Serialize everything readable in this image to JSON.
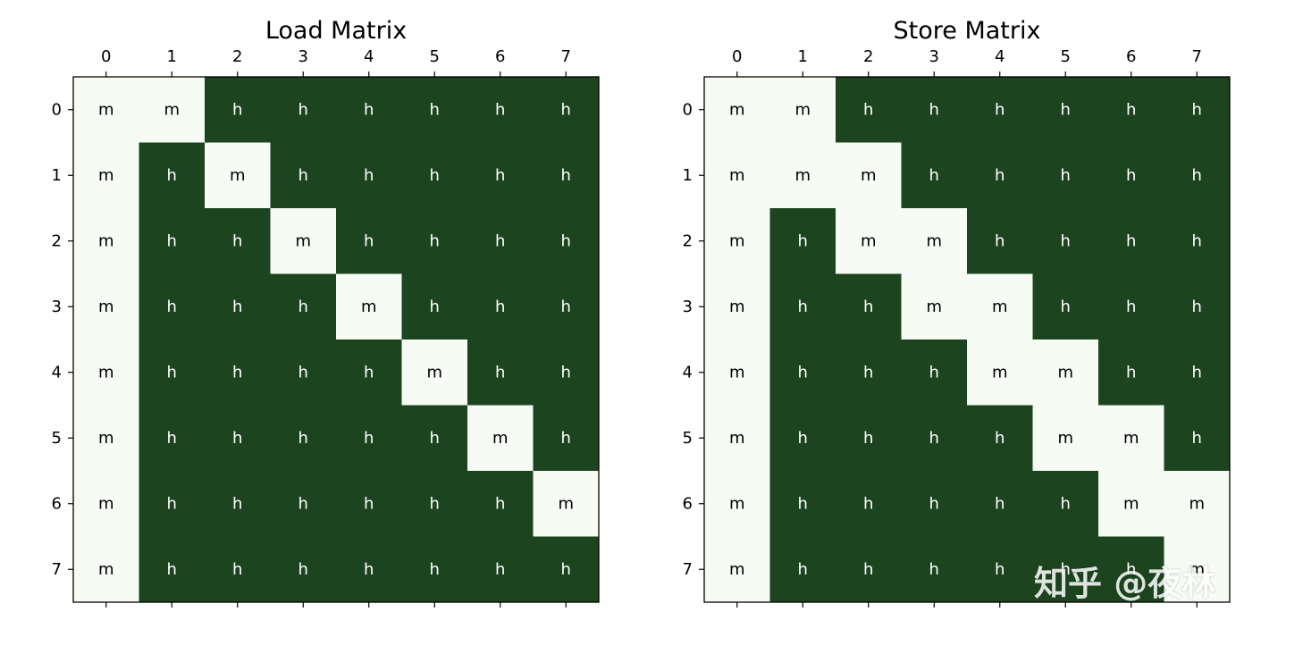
{
  "colors": {
    "h": "#1c441f",
    "m": "#f6fbf4",
    "text_on_h": "#ffffff",
    "text_on_m": "#000000"
  },
  "watermark": "知乎 @夜林",
  "chart_data": [
    {
      "type": "heatmap",
      "title": "Load Matrix",
      "x_ticks": [
        "0",
        "1",
        "2",
        "3",
        "4",
        "5",
        "6",
        "7"
      ],
      "y_ticks": [
        "0",
        "1",
        "2",
        "3",
        "4",
        "5",
        "6",
        "7"
      ],
      "values": [
        [
          "m",
          "m",
          "h",
          "h",
          "h",
          "h",
          "h",
          "h"
        ],
        [
          "m",
          "h",
          "m",
          "h",
          "h",
          "h",
          "h",
          "h"
        ],
        [
          "m",
          "h",
          "h",
          "m",
          "h",
          "h",
          "h",
          "h"
        ],
        [
          "m",
          "h",
          "h",
          "h",
          "m",
          "h",
          "h",
          "h"
        ],
        [
          "m",
          "h",
          "h",
          "h",
          "h",
          "m",
          "h",
          "h"
        ],
        [
          "m",
          "h",
          "h",
          "h",
          "h",
          "h",
          "m",
          "h"
        ],
        [
          "m",
          "h",
          "h",
          "h",
          "h",
          "h",
          "h",
          "m"
        ],
        [
          "m",
          "h",
          "h",
          "h",
          "h",
          "h",
          "h",
          "h"
        ]
      ]
    },
    {
      "type": "heatmap",
      "title": "Store Matrix",
      "x_ticks": [
        "0",
        "1",
        "2",
        "3",
        "4",
        "5",
        "6",
        "7"
      ],
      "y_ticks": [
        "0",
        "1",
        "2",
        "3",
        "4",
        "5",
        "6",
        "7"
      ],
      "values": [
        [
          "m",
          "m",
          "h",
          "h",
          "h",
          "h",
          "h",
          "h"
        ],
        [
          "m",
          "m",
          "m",
          "h",
          "h",
          "h",
          "h",
          "h"
        ],
        [
          "m",
          "h",
          "m",
          "m",
          "h",
          "h",
          "h",
          "h"
        ],
        [
          "m",
          "h",
          "h",
          "m",
          "m",
          "h",
          "h",
          "h"
        ],
        [
          "m",
          "h",
          "h",
          "h",
          "m",
          "m",
          "h",
          "h"
        ],
        [
          "m",
          "h",
          "h",
          "h",
          "h",
          "m",
          "m",
          "h"
        ],
        [
          "m",
          "h",
          "h",
          "h",
          "h",
          "h",
          "m",
          "m"
        ],
        [
          "m",
          "h",
          "h",
          "h",
          "h",
          "h",
          "h",
          "m"
        ]
      ]
    }
  ]
}
